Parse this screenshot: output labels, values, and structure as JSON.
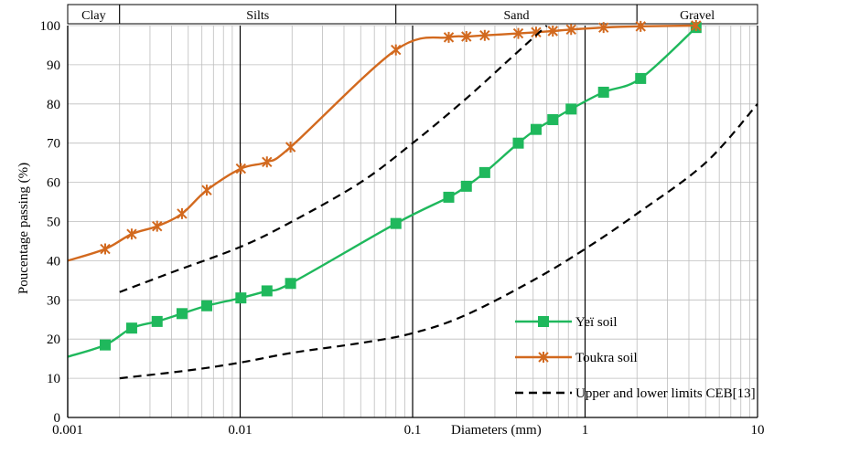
{
  "chart_data": {
    "type": "line",
    "title": "",
    "xlabel": "Diameters (mm)",
    "ylabel": "Poucentage passing (%)",
    "x_scale": "log",
    "xlim": [
      0.001,
      10
    ],
    "ylim": [
      0,
      100
    ],
    "x_ticks": [
      {
        "value": 0.001,
        "label": "0.001"
      },
      {
        "value": 0.01,
        "label": "0.01"
      },
      {
        "value": 0.1,
        "label": "0.1"
      },
      {
        "value": 1,
        "label": "1"
      },
      {
        "value": 10,
        "label": "10"
      }
    ],
    "y_ticks": [
      0,
      10,
      20,
      30,
      40,
      50,
      60,
      70,
      80,
      90,
      100
    ],
    "grid": true,
    "legend_position": "bottom-right",
    "zones": [
      {
        "label": "Clay",
        "from": 0.001,
        "to": 0.002
      },
      {
        "label": "Silts",
        "from": 0.002,
        "to": 0.08
      },
      {
        "label": "Sand",
        "from": 0.08,
        "to": 2
      },
      {
        "label": "Gravel",
        "from": 2,
        "to": 10
      }
    ],
    "series": [
      {
        "name": "Yeï soil",
        "color": "#1fb85c",
        "marker": "square",
        "style": "solid",
        "points": [
          [
            0.001,
            15.5
          ],
          [
            0.00165,
            18.5
          ],
          [
            0.00235,
            22.8
          ],
          [
            0.0033,
            24.5
          ],
          [
            0.0046,
            26.5
          ],
          [
            0.0064,
            28.5
          ],
          [
            0.0101,
            30.5
          ],
          [
            0.0143,
            32.3
          ],
          [
            0.0196,
            34.2
          ],
          [
            0.08,
            49.5
          ],
          [
            0.162,
            56.2
          ],
          [
            0.205,
            59.0
          ],
          [
            0.262,
            62.5
          ],
          [
            0.41,
            70.0
          ],
          [
            0.52,
            73.5
          ],
          [
            0.65,
            76.0
          ],
          [
            0.83,
            78.7
          ],
          [
            1.28,
            83.0
          ],
          [
            2.1,
            86.5
          ],
          [
            4.4,
            99.5
          ]
        ]
      },
      {
        "name": "Toukra soil",
        "color": "#d2691e",
        "marker": "star",
        "style": "solid",
        "points": [
          [
            0.001,
            40.0
          ],
          [
            0.00165,
            43.0
          ],
          [
            0.00235,
            46.8
          ],
          [
            0.0033,
            48.8
          ],
          [
            0.0046,
            52.0
          ],
          [
            0.0064,
            58.0
          ],
          [
            0.0101,
            63.5
          ],
          [
            0.0143,
            65.2
          ],
          [
            0.0196,
            69.0
          ],
          [
            0.08,
            93.8
          ],
          [
            0.162,
            97.0
          ],
          [
            0.205,
            97.2
          ],
          [
            0.262,
            97.5
          ],
          [
            0.41,
            98.0
          ],
          [
            0.52,
            98.3
          ],
          [
            0.65,
            98.6
          ],
          [
            0.83,
            99.0
          ],
          [
            1.28,
            99.5
          ],
          [
            2.1,
            99.8
          ],
          [
            4.4,
            100.0
          ]
        ]
      },
      {
        "name": "Upper and lower limits CEB[13]",
        "color": "#000000",
        "marker": "none",
        "style": "dashed",
        "points": [
          [
            0.002,
            32
          ],
          [
            0.004,
            37
          ],
          [
            0.01,
            43.5
          ],
          [
            0.02,
            50
          ],
          [
            0.05,
            60
          ],
          [
            0.1,
            70
          ],
          [
            0.2,
            81
          ],
          [
            0.4,
            93
          ],
          [
            0.6,
            100
          ]
        ]
      },
      {
        "name": "",
        "color": "#000000",
        "marker": "none",
        "style": "dashed",
        "points": [
          [
            0.002,
            10
          ],
          [
            0.005,
            12
          ],
          [
            0.01,
            14
          ],
          [
            0.02,
            16.5
          ],
          [
            0.05,
            19
          ],
          [
            0.1,
            21.5
          ],
          [
            0.2,
            26
          ],
          [
            0.5,
            35
          ],
          [
            1,
            43
          ],
          [
            2,
            52
          ],
          [
            5,
            65
          ],
          [
            10,
            80
          ]
        ]
      }
    ]
  }
}
